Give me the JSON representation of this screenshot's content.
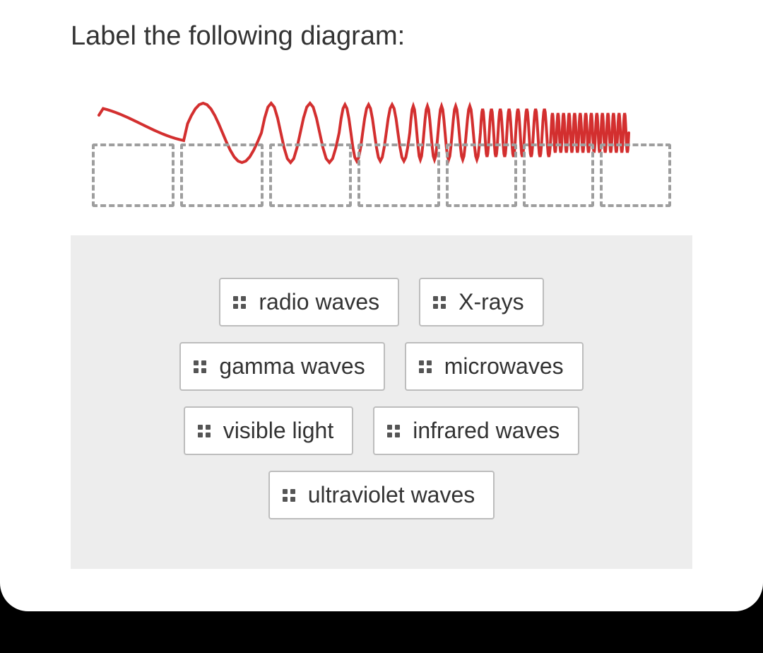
{
  "instruction": "Label the following diagram:",
  "diagram": {
    "type": "wave-spectrum",
    "wave_color": "#d32f2f",
    "wave_stroke_width": 4,
    "drop_target_border_color": "#9e9e9e",
    "drop_target_count": 7,
    "background_color": "#ffffff"
  },
  "answer_bank": {
    "background_color": "#ededed",
    "chip_background": "#ffffff",
    "chip_border_color": "#bdbdbd",
    "chip_text_color": "#333333",
    "grip_color": "#555555",
    "rows": [
      [
        {
          "id": "radio",
          "label": "radio waves"
        },
        {
          "id": "xrays",
          "label": "X-rays"
        }
      ],
      [
        {
          "id": "gamma",
          "label": "gamma waves"
        },
        {
          "id": "microwaves",
          "label": "microwaves"
        }
      ],
      [
        {
          "id": "visible",
          "label": "visible light"
        },
        {
          "id": "infrared",
          "label": "infrared waves"
        }
      ],
      [
        {
          "id": "uv",
          "label": "ultraviolet waves"
        }
      ]
    ]
  },
  "colors": {
    "page_background": "#000000",
    "card_background": "#ffffff",
    "text_primary": "#333333"
  }
}
